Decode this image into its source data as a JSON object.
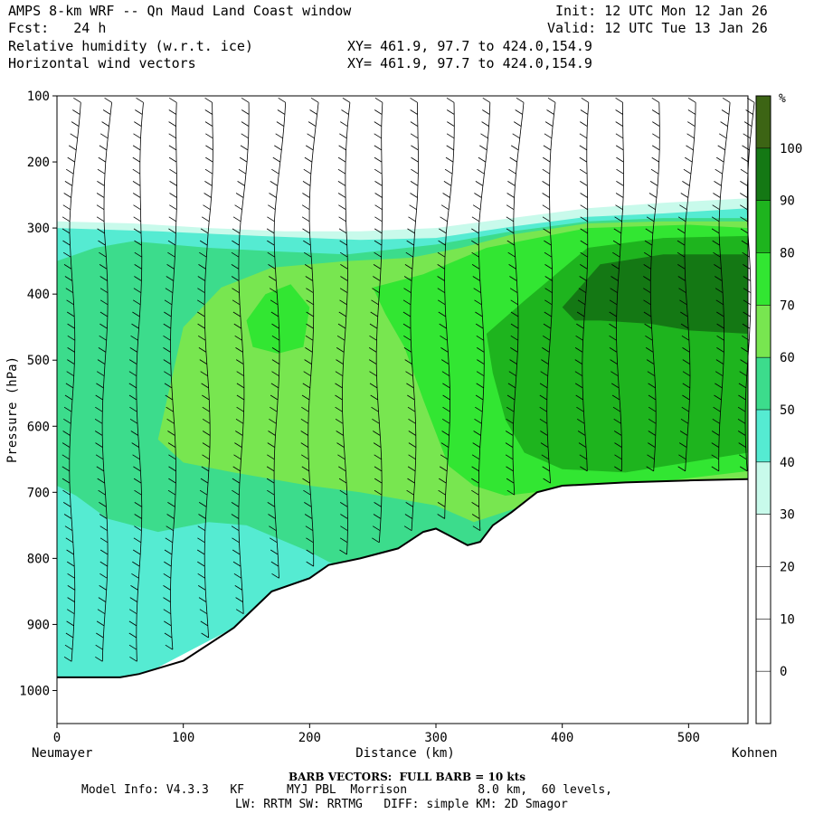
{
  "header": {
    "title": "AMPS 8-km WRF -- Qn Maud Land Coast window",
    "forecast": "Fcst:   24 h",
    "init": "Init: 12 UTC Mon 12 Jan 26",
    "valid": "Valid: 12 UTC Tue 13 Jan 26",
    "field1": "Relative humidity (w.r.t. ice)",
    "field2": "Horizontal wind vectors",
    "xy1": "XY= 461.9, 97.7 to 424.0,154.9",
    "xy2": "XY= 461.9, 97.7 to 424.0,154.9"
  },
  "footer": {
    "barb_note": "BARB VECTORS:  FULL BARB = 10 kts",
    "model_info": "Model Info: V4.3.3   KF      MYJ PBL  Morrison          8.0 km,  60 levels,",
    "physics": "LW: RRTM SW: RRTMG   DIFF: simple KM: 2D Smagor"
  },
  "colors": {
    "rh_0_30": "#ffffff",
    "rh_30_40": "#c8faeb",
    "rh_40_50": "#55ebd2",
    "rh_50_60": "#3cdc8c",
    "rh_60_70": "#78e650",
    "rh_70_80": "#32e632",
    "rh_80_90": "#1eb41e",
    "rh_90_100": "#147814",
    "rh_100": "#3c6414"
  },
  "chart_data": {
    "type": "heatmap",
    "title": "Relative humidity (w.r.t. ice)",
    "xlabel": "Distance (km)",
    "ylabel": "Pressure (hPa)",
    "x_ticks": [
      0,
      100,
      200,
      300,
      400,
      500
    ],
    "y_ticks": [
      100,
      200,
      300,
      400,
      500,
      600,
      700,
      800,
      900,
      1000
    ],
    "xlim": [
      0,
      547
    ],
    "ylim": [
      1050,
      100
    ],
    "x_end_labels": {
      "left": "Neumayer",
      "right": "Kohnen"
    },
    "colorbar": {
      "unit": "%",
      "ticks": [
        0,
        10,
        20,
        30,
        40,
        50,
        60,
        70,
        80,
        90,
        100
      ],
      "bins": [
        {
          "from": 30,
          "to": 40,
          "color": "#c8faeb"
        },
        {
          "from": 40,
          "to": 50,
          "color": "#55ebd2"
        },
        {
          "from": 50,
          "to": 60,
          "color": "#3cdc8c"
        },
        {
          "from": 60,
          "to": 70,
          "color": "#78e650"
        },
        {
          "from": 70,
          "to": 80,
          "color": "#32e632"
        },
        {
          "from": 80,
          "to": 90,
          "color": "#1eb41e"
        },
        {
          "from": 90,
          "to": 100,
          "color": "#147814"
        },
        {
          "from": 100,
          "to": 110,
          "color": "#3c6414"
        }
      ]
    },
    "terrain_surface_hPa": {
      "x": [
        0,
        25,
        50,
        65,
        100,
        140,
        170,
        200,
        215,
        240,
        270,
        290,
        300,
        310,
        325,
        335,
        345,
        360,
        380,
        400,
        450,
        500,
        547
      ],
      "p": [
        980,
        980,
        980,
        975,
        955,
        905,
        850,
        830,
        810,
        800,
        785,
        760,
        755,
        765,
        780,
        775,
        750,
        730,
        700,
        690,
        685,
        682,
        680
      ]
    },
    "rh_regions": [
      {
        "rh": 30,
        "pts": [
          [
            0,
            290
          ],
          [
            60,
            293
          ],
          [
            120,
            300
          ],
          [
            180,
            305
          ],
          [
            240,
            305
          ],
          [
            300,
            300
          ],
          [
            360,
            285
          ],
          [
            420,
            270
          ],
          [
            480,
            262
          ],
          [
            547,
            255
          ],
          [
            547,
            690
          ],
          [
            0,
            990
          ]
        ]
      },
      {
        "rh": 40,
        "pts": [
          [
            0,
            300
          ],
          [
            80,
            305
          ],
          [
            160,
            312
          ],
          [
            240,
            318
          ],
          [
            300,
            315
          ],
          [
            360,
            298
          ],
          [
            420,
            283
          ],
          [
            480,
            278
          ],
          [
            547,
            270
          ],
          [
            547,
            690
          ],
          [
            400,
            705
          ],
          [
            300,
            770
          ],
          [
            200,
            840
          ],
          [
            140,
            905
          ],
          [
            90,
            955
          ],
          [
            60,
            985
          ],
          [
            0,
            990
          ]
        ]
      },
      {
        "rh": 50,
        "pts": [
          [
            0,
            350
          ],
          [
            30,
            330
          ],
          [
            60,
            320
          ],
          [
            120,
            330
          ],
          [
            170,
            335
          ],
          [
            230,
            340
          ],
          [
            300,
            325
          ],
          [
            360,
            305
          ],
          [
            420,
            290
          ],
          [
            480,
            285
          ],
          [
            547,
            285
          ],
          [
            547,
            685
          ],
          [
            400,
            700
          ],
          [
            360,
            740
          ],
          [
            330,
            790
          ],
          [
            300,
            790
          ],
          [
            280,
            790
          ],
          [
            220,
            810
          ],
          [
            200,
            790
          ],
          [
            150,
            750
          ],
          [
            120,
            745
          ],
          [
            80,
            760
          ],
          [
            40,
            740
          ],
          [
            15,
            705
          ],
          [
            0,
            690
          ]
        ]
      },
      {
        "rh": 60,
        "pts": [
          [
            100,
            450
          ],
          [
            130,
            390
          ],
          [
            170,
            360
          ],
          [
            230,
            350
          ],
          [
            280,
            345
          ],
          [
            320,
            330
          ],
          [
            360,
            310
          ],
          [
            420,
            293
          ],
          [
            480,
            290
          ],
          [
            547,
            290
          ],
          [
            547,
            680
          ],
          [
            420,
            697
          ],
          [
            370,
            720
          ],
          [
            330,
            745
          ],
          [
            300,
            720
          ],
          [
            240,
            700
          ],
          [
            200,
            690
          ],
          [
            140,
            670
          ],
          [
            100,
            655
          ],
          [
            80,
            620
          ]
        ]
      },
      {
        "rh": 70,
        "pts": [
          [
            150,
            440
          ],
          [
            165,
            400
          ],
          [
            185,
            385
          ],
          [
            200,
            420
          ],
          [
            195,
            480
          ],
          [
            175,
            490
          ],
          [
            155,
            480
          ]
        ]
      },
      {
        "rh": 70,
        "pts": [
          [
            250,
            390
          ],
          [
            290,
            370
          ],
          [
            340,
            330
          ],
          [
            420,
            300
          ],
          [
            500,
            295
          ],
          [
            547,
            300
          ],
          [
            547,
            668
          ],
          [
            450,
            690
          ],
          [
            400,
            695
          ],
          [
            355,
            705
          ],
          [
            330,
            690
          ],
          [
            310,
            660
          ],
          [
            290,
            560
          ],
          [
            275,
            480
          ],
          [
            260,
            430
          ]
        ]
      },
      {
        "rh": 80,
        "pts": [
          [
            340,
            460
          ],
          [
            370,
            410
          ],
          [
            420,
            330
          ],
          [
            480,
            315
          ],
          [
            547,
            312
          ],
          [
            547,
            640
          ],
          [
            450,
            670
          ],
          [
            400,
            665
          ],
          [
            370,
            640
          ],
          [
            355,
            590
          ],
          [
            345,
            520
          ]
        ]
      },
      {
        "rh": 90,
        "pts": [
          [
            400,
            420
          ],
          [
            430,
            355
          ],
          [
            480,
            340
          ],
          [
            547,
            340
          ],
          [
            547,
            460
          ],
          [
            500,
            455
          ],
          [
            470,
            445
          ],
          [
            430,
            440
          ],
          [
            410,
            440
          ]
        ]
      }
    ],
    "wind_barb_columns_km": [
      12,
      38,
      65,
      92,
      119,
      146,
      174,
      201,
      228,
      255,
      282,
      309,
      336,
      363,
      390,
      418,
      445,
      472,
      499,
      526,
      547
    ]
  }
}
